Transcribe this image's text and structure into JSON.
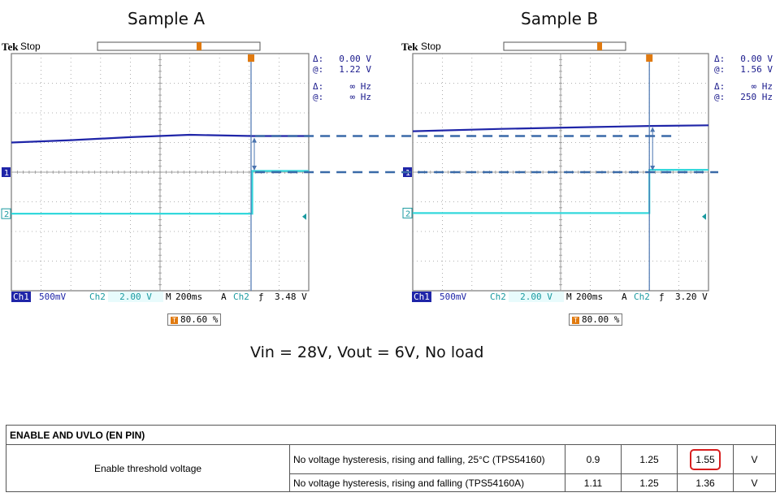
{
  "samples": [
    {
      "title": "Sample A",
      "brand": "Tek",
      "status": "Stop",
      "delta_label_1": "Δ:",
      "delta_val_1": "0.00 V",
      "at_label_1": "@:",
      "at_val_1": "1.22 V",
      "delta_label_2": "Δ:",
      "delta_val_2": "∞ Hz",
      "at_label_2": "@:",
      "at_val_2": "∞ Hz",
      "ch1_label": "Ch1",
      "ch1_scale": "500mV",
      "ch2_label": "Ch2",
      "ch2_scale": "2.00 V",
      "time_label": "M",
      "time_scale": "200ms",
      "acq_label": "A",
      "trig_src": "Ch2",
      "trig_edge": "ƒ",
      "trig_level": "3.48 V",
      "trig_pos": "80.60 %"
    },
    {
      "title": "Sample B",
      "brand": "Tek",
      "status": "Stop",
      "delta_label_1": "Δ:",
      "delta_val_1": "0.00 V",
      "at_label_1": "@:",
      "at_val_1": "1.56 V",
      "delta_label_2": "Δ:",
      "delta_val_2": "∞ Hz",
      "at_label_2": "@:",
      "at_val_2": "250 Hz",
      "ch1_label": "Ch1",
      "ch1_scale": "500mV",
      "ch2_label": "Ch2",
      "ch2_scale": "2.00 V",
      "time_label": "M",
      "time_scale": "200ms",
      "acq_label": "A",
      "trig_src": "Ch2",
      "trig_edge": "ƒ",
      "trig_level": "3.20 V",
      "trig_pos": "80.00 %"
    }
  ],
  "caption": "Vin = 28V, Vout = 6V, No load",
  "table": {
    "header": "ENABLE AND UVLO (EN PIN)",
    "param": "Enable threshold voltage",
    "rows": [
      {
        "condition": "No voltage hysteresis, rising and falling, 25°C (TPS54160)",
        "min": "0.9",
        "typ": "1.25",
        "max": "1.55",
        "unit": "V"
      },
      {
        "condition": "No voltage hysteresis, rising and falling (TPS54160A)",
        "min": "1.11",
        "typ": "1.25",
        "max": "1.36",
        "unit": "V"
      }
    ]
  },
  "colors": {
    "ch1": "#1f25a8",
    "ch2": "#34d8dc",
    "cursor": "#4a74b0",
    "dashed_ref": "#3a6aa8",
    "grid": "#9a9a9a",
    "highlight": "#d81e1e",
    "trigger_marker": "#e07a10"
  },
  "chart_data": [
    {
      "type": "line",
      "title": "Sample A",
      "x_divisions": 10,
      "y_divisions": 8,
      "seconds_per_div": 0.2,
      "series": [
        {
          "name": "Ch1",
          "volts_per_div": 0.5,
          "x_div": [
            0,
            2,
            4,
            6,
            8.1,
            10
          ],
          "y_div_above_ch1_ground": [
            1.0,
            1.08,
            1.18,
            1.26,
            1.22,
            1.22
          ]
        },
        {
          "name": "Ch2",
          "volts_per_div": 2.0,
          "x_div": [
            0,
            8.1,
            8.1,
            10
          ],
          "y_div_above_ch1_ground": [
            -1.4,
            -1.4,
            0.04,
            0.04
          ]
        }
      ],
      "cursor_level_volts": 1.22,
      "cursor_delta_volts": 0.0,
      "trigger_level_volts": 3.48,
      "trigger_position_percent": 80.6
    },
    {
      "type": "line",
      "title": "Sample B",
      "x_divisions": 10,
      "y_divisions": 8,
      "seconds_per_div": 0.2,
      "series": [
        {
          "name": "Ch1",
          "volts_per_div": 0.5,
          "x_div": [
            0,
            3,
            6,
            8,
            10
          ],
          "y_div_above_ch1_ground": [
            1.38,
            1.46,
            1.52,
            1.56,
            1.58
          ]
        },
        {
          "name": "Ch2",
          "volts_per_div": 2.0,
          "x_div": [
            0,
            8,
            8,
            10
          ],
          "y_div_above_ch1_ground": [
            -1.38,
            -1.38,
            0.08,
            0.08
          ]
        }
      ],
      "cursor_level_volts": 1.56,
      "cursor_delta_volts": 0.0,
      "trigger_level_volts": 3.2,
      "trigger_position_percent": 80.0
    }
  ]
}
